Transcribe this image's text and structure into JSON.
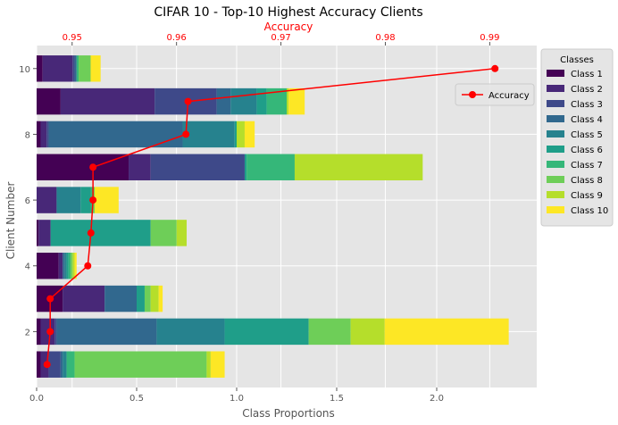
{
  "chart_data": {
    "type": "bar",
    "orientation": "horizontal",
    "stacked": true,
    "title": "CIFAR 10 - Top-10 Highest Accuracy Clients",
    "xlabel": "Class Proportions",
    "ylabel": "Client Number",
    "xlim": [
      0,
      2.5
    ],
    "ylim": [
      0.3,
      10.7
    ],
    "x_ticks": [
      "0.0",
      "0.5",
      "1.0",
      "1.5",
      "2.0"
    ],
    "x_tick_values": [
      0,
      0.5,
      1.0,
      1.5,
      2.0
    ],
    "y_ticks": [
      "2",
      "4",
      "6",
      "8",
      "10"
    ],
    "y_tick_values": [
      2,
      4,
      6,
      8,
      10
    ],
    "clients": [
      1,
      2,
      3,
      4,
      5,
      6,
      7,
      8,
      9,
      10
    ],
    "series": [
      {
        "name": "Class 1",
        "color": "#440154",
        "values": [
          0.02,
          0.02,
          0.13,
          0.11,
          0.01,
          0.0,
          0.46,
          0.02,
          0.12,
          0.03
        ]
      },
      {
        "name": "Class 2",
        "color": "#482878",
        "values": [
          0.04,
          0.07,
          0.21,
          0.02,
          0.06,
          0.1,
          0.11,
          0.03,
          0.47,
          0.15
        ]
      },
      {
        "name": "Class 3",
        "color": "#3e4989",
        "values": [
          0.06,
          0.01,
          0.0,
          0.0,
          0.0,
          0.0,
          0.47,
          0.01,
          0.31,
          0.01
        ]
      },
      {
        "name": "Class 4",
        "color": "#31688e",
        "values": [
          0.01,
          0.5,
          0.16,
          0.01,
          0.0,
          0.0,
          0.0,
          0.67,
          0.07,
          0.01
        ]
      },
      {
        "name": "Class 5",
        "color": "#26828e",
        "values": [
          0.02,
          0.34,
          0.0,
          0.01,
          0.0,
          0.12,
          0.0,
          0.26,
          0.13,
          0.0
        ]
      },
      {
        "name": "Class 6",
        "color": "#1f9e89",
        "values": [
          0.0,
          0.42,
          0.04,
          0.01,
          0.5,
          0.05,
          0.01,
          0.01,
          0.05,
          0.0
        ]
      },
      {
        "name": "Class 7",
        "color": "#35b779",
        "values": [
          0.04,
          0.0,
          0.0,
          0.01,
          0.0,
          0.01,
          0.24,
          0.0,
          0.1,
          0.01
        ]
      },
      {
        "name": "Class 8",
        "color": "#6ece58",
        "values": [
          0.66,
          0.21,
          0.03,
          0.01,
          0.13,
          0.01,
          0.0,
          0.0,
          0.0,
          0.06
        ]
      },
      {
        "name": "Class 9",
        "color": "#b5de2b",
        "values": [
          0.02,
          0.17,
          0.04,
          0.01,
          0.05,
          0.0,
          0.64,
          0.04,
          0.01,
          0.0
        ]
      },
      {
        "name": "Class 10",
        "color": "#fde725",
        "values": [
          0.07,
          0.62,
          0.02,
          0.01,
          0.0,
          0.12,
          0.0,
          0.05,
          0.08,
          0.05
        ]
      }
    ],
    "accuracy": {
      "name": "Accuracy",
      "color": "#ff0000",
      "axis_label": "Accuracy",
      "axis_position": "top",
      "values": [
        0.9476,
        0.9479,
        0.9479,
        0.9515,
        0.9518,
        0.952,
        0.952,
        0.9609,
        0.9611,
        0.9905
      ],
      "xlim": [
        0.9466,
        0.9945
      ],
      "ticks": [
        "0.95",
        "0.96",
        "0.97",
        "0.98",
        "0.99"
      ],
      "tick_values": [
        0.95,
        0.96,
        0.97,
        0.98,
        0.99
      ]
    },
    "legend": {
      "title": "Classes",
      "position": "outside-right"
    },
    "accuracy_legend_position": "right",
    "grid": true
  }
}
